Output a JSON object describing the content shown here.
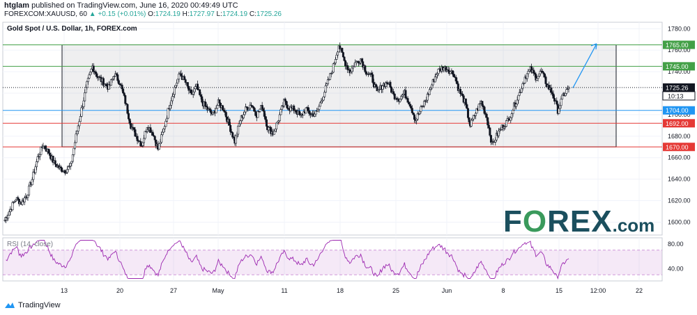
{
  "header": {
    "author": "htglam",
    "published": "published on TradingView.com, June 16, 2020 00:49:49 UTC",
    "symbol": "FOREXCOM:XAUUSD, 60",
    "change": "+0.15 (+0.01%)",
    "ohlc": {
      "o_label": "O:",
      "o": "1724.19",
      "h_label": "H:",
      "h": "1727.97",
      "l_label": "L:",
      "l": "1724.19",
      "c_label": "C:",
      "c": "1725.26"
    }
  },
  "chart_title": "Gold Spot / U.S. Dollar, 1h, FOREX.com",
  "rsi_label": "RSI (14, close)",
  "logo": {
    "text_a": "F",
    "text_o": "O",
    "text_b": "REX",
    "text_com": ".com"
  },
  "footer": {
    "brand": "TradingView"
  },
  "colors": {
    "green": "#43a047",
    "red": "#e53935",
    "blue": "#2196f3",
    "rsi": "#9c27b0",
    "candle": "#131722"
  },
  "chart_data": {
    "type": "candlestick",
    "y_ticks": [
      "1780.00",
      "1760.00",
      "1740.00",
      "1720.00",
      "1700.00",
      "1680.00",
      "1660.00",
      "1640.00",
      "1620.00",
      "1600.00"
    ],
    "ylim": [
      1588,
      1786
    ],
    "x_ticks": [
      "13",
      "20",
      "27",
      "May",
      "11",
      "18",
      "25",
      "Jun",
      "8",
      "15",
      "12:00",
      "22"
    ],
    "levels": [
      {
        "value": 1765.0,
        "label": "1765.00",
        "color": "green"
      },
      {
        "value": 1745.0,
        "label": "1745.00",
        "color": "green"
      },
      {
        "value": 1725.26,
        "label": "1725.26",
        "color": "current"
      },
      {
        "value": 1704.0,
        "label": "1704.00",
        "color": "blue"
      },
      {
        "value": 1692.0,
        "label": "1692.00",
        "color": "red"
      },
      {
        "value": 1670.0,
        "label": "1670.00",
        "color": "red"
      }
    ],
    "countdown": "10:13",
    "range_box": {
      "top": 1765,
      "bottom": 1670
    },
    "price_path": [
      [
        0,
        1602
      ],
      [
        2,
        1612
      ],
      [
        4,
        1622
      ],
      [
        6,
        1618
      ],
      [
        8,
        1625
      ],
      [
        10,
        1640
      ],
      [
        12,
        1660
      ],
      [
        14,
        1672
      ],
      [
        16,
        1665
      ],
      [
        18,
        1655
      ],
      [
        20,
        1650
      ],
      [
        22,
        1648
      ],
      [
        24,
        1652
      ],
      [
        26,
        1680
      ],
      [
        28,
        1705
      ],
      [
        30,
        1728
      ],
      [
        32,
        1745
      ],
      [
        34,
        1735
      ],
      [
        36,
        1730
      ],
      [
        38,
        1725
      ],
      [
        40,
        1738
      ],
      [
        42,
        1730
      ],
      [
        44,
        1712
      ],
      [
        46,
        1690
      ],
      [
        48,
        1680
      ],
      [
        50,
        1672
      ],
      [
        52,
        1690
      ],
      [
        54,
        1683
      ],
      [
        56,
        1668
      ],
      [
        58,
        1686
      ],
      [
        60,
        1708
      ],
      [
        62,
        1725
      ],
      [
        64,
        1738
      ],
      [
        66,
        1730
      ],
      [
        68,
        1718
      ],
      [
        70,
        1726
      ],
      [
        72,
        1712
      ],
      [
        74,
        1705
      ],
      [
        76,
        1700
      ],
      [
        78,
        1711
      ],
      [
        80,
        1705
      ],
      [
        82,
        1690
      ],
      [
        84,
        1675
      ],
      [
        86,
        1695
      ],
      [
        88,
        1705
      ],
      [
        90,
        1710
      ],
      [
        92,
        1700
      ],
      [
        94,
        1708
      ],
      [
        96,
        1688
      ],
      [
        98,
        1683
      ],
      [
        100,
        1696
      ],
      [
        102,
        1712
      ],
      [
        104,
        1706
      ],
      [
        106,
        1705
      ],
      [
        108,
        1698
      ],
      [
        110,
        1705
      ],
      [
        112,
        1700
      ],
      [
        114,
        1702
      ],
      [
        116,
        1716
      ],
      [
        118,
        1730
      ],
      [
        120,
        1745
      ],
      [
        122,
        1765
      ],
      [
        124,
        1750
      ],
      [
        126,
        1740
      ],
      [
        128,
        1748
      ],
      [
        130,
        1752
      ],
      [
        132,
        1740
      ],
      [
        134,
        1735
      ],
      [
        136,
        1720
      ],
      [
        138,
        1728
      ],
      [
        140,
        1730
      ],
      [
        142,
        1718
      ],
      [
        144,
        1715
      ],
      [
        146,
        1720
      ],
      [
        148,
        1710
      ],
      [
        150,
        1695
      ],
      [
        152,
        1705
      ],
      [
        154,
        1715
      ],
      [
        156,
        1728
      ],
      [
        158,
        1740
      ],
      [
        160,
        1744
      ],
      [
        162,
        1742
      ],
      [
        164,
        1738
      ],
      [
        166,
        1722
      ],
      [
        168,
        1712
      ],
      [
        170,
        1690
      ],
      [
        172,
        1702
      ],
      [
        174,
        1712
      ],
      [
        176,
        1698
      ],
      [
        178,
        1672
      ],
      [
        180,
        1682
      ],
      [
        182,
        1690
      ],
      [
        184,
        1695
      ],
      [
        186,
        1708
      ],
      [
        188,
        1720
      ],
      [
        190,
        1735
      ],
      [
        192,
        1742
      ],
      [
        194,
        1735
      ],
      [
        196,
        1740
      ],
      [
        198,
        1728
      ],
      [
        200,
        1720
      ],
      [
        202,
        1704
      ],
      [
        204,
        1718
      ],
      [
        206,
        1725
      ]
    ],
    "rsi": {
      "levels": [
        "80.00",
        "40.00"
      ],
      "ylim": [
        20,
        90
      ],
      "band": [
        30,
        70
      ]
    }
  }
}
